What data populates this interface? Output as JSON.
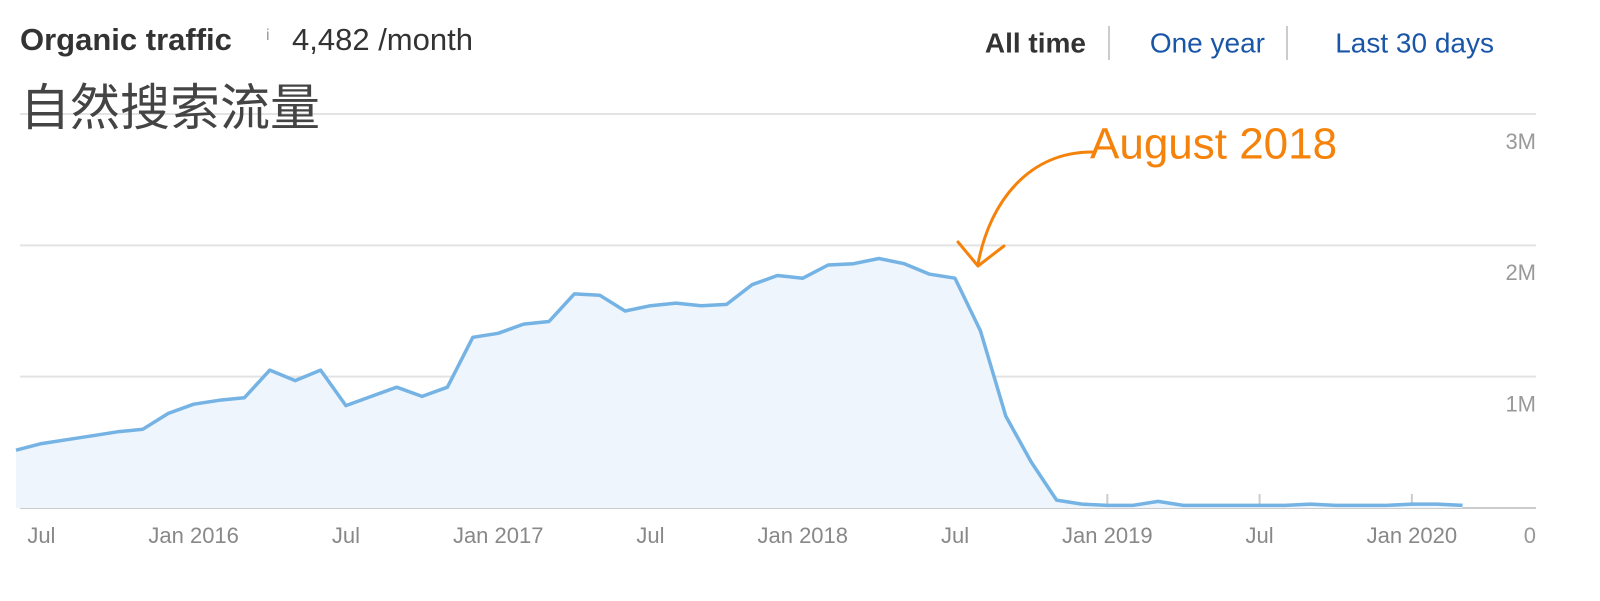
{
  "header": {
    "title": "Organic traffic",
    "info": "i",
    "metric": "4,482 /month",
    "tabs": [
      "All time",
      "One year",
      "Last 30 days"
    ]
  },
  "chart_data": {
    "type": "area",
    "title": "自然搜索流量",
    "annotation": "August 2018",
    "x": [
      "2015-06",
      "2015-07",
      "2015-08",
      "2015-09",
      "2015-10",
      "2015-11",
      "2015-12",
      "2016-01",
      "2016-02",
      "2016-03",
      "2016-04",
      "2016-05",
      "2016-06",
      "2016-07",
      "2016-08",
      "2016-09",
      "2016-10",
      "2016-11",
      "2016-12",
      "2017-01",
      "2017-02",
      "2017-03",
      "2017-04",
      "2017-05",
      "2017-06",
      "2017-07",
      "2017-08",
      "2017-09",
      "2017-10",
      "2017-11",
      "2017-12",
      "2018-01",
      "2018-02",
      "2018-03",
      "2018-04",
      "2018-05",
      "2018-06",
      "2018-07",
      "2018-08",
      "2018-09",
      "2018-10",
      "2018-11",
      "2018-12",
      "2019-01",
      "2019-02",
      "2019-03",
      "2019-04",
      "2019-05",
      "2019-06",
      "2019-07",
      "2019-08",
      "2019-09",
      "2019-10",
      "2019-11",
      "2019-12",
      "2020-01",
      "2020-02",
      "2020-03"
    ],
    "series": [
      {
        "name": "Organic traffic",
        "color": "#75b3e4",
        "values": [
          440000,
          490000,
          520000,
          550000,
          580000,
          600000,
          720000,
          790000,
          820000,
          840000,
          1050000,
          970000,
          1050000,
          780000,
          850000,
          920000,
          850000,
          920000,
          1300000,
          1330000,
          1400000,
          1420000,
          1630000,
          1620000,
          1500000,
          1540000,
          1560000,
          1540000,
          1550000,
          1700000,
          1770000,
          1750000,
          1850000,
          1860000,
          1900000,
          1860000,
          1780000,
          1750000,
          1350000,
          700000,
          350000,
          60000,
          30000,
          20000,
          20000,
          50000,
          20000,
          20000,
          20000,
          20000,
          20000,
          30000,
          20000,
          20000,
          20000,
          30000,
          30000,
          20000
        ]
      }
    ],
    "xlim": [
      "2015-06",
      "2020-04"
    ],
    "xticks": [
      {
        "value": "2015-07",
        "label": "Jul"
      },
      {
        "value": "2016-01",
        "label": "Jan 2016"
      },
      {
        "value": "2016-07",
        "label": "Jul"
      },
      {
        "value": "2017-01",
        "label": "Jan 2017"
      },
      {
        "value": "2017-07",
        "label": "Jul"
      },
      {
        "value": "2018-01",
        "label": "Jan 2018"
      },
      {
        "value": "2018-07",
        "label": "Jul"
      },
      {
        "value": "2019-01",
        "label": "Jan 2019"
      },
      {
        "value": "2019-07",
        "label": "Jul"
      },
      {
        "value": "2020-01",
        "label": "Jan 2020"
      }
    ],
    "ylim": [
      0,
      3000000
    ],
    "yticks": [
      0,
      {
        "value": 1000000,
        "label": "1M"
      },
      {
        "value": 2000000,
        "label": "2M"
      },
      {
        "value": 3000000,
        "label": "3M"
      }
    ],
    "grid": true,
    "fill_color": "#eef5fd",
    "annotation_color": "#f5820a"
  }
}
